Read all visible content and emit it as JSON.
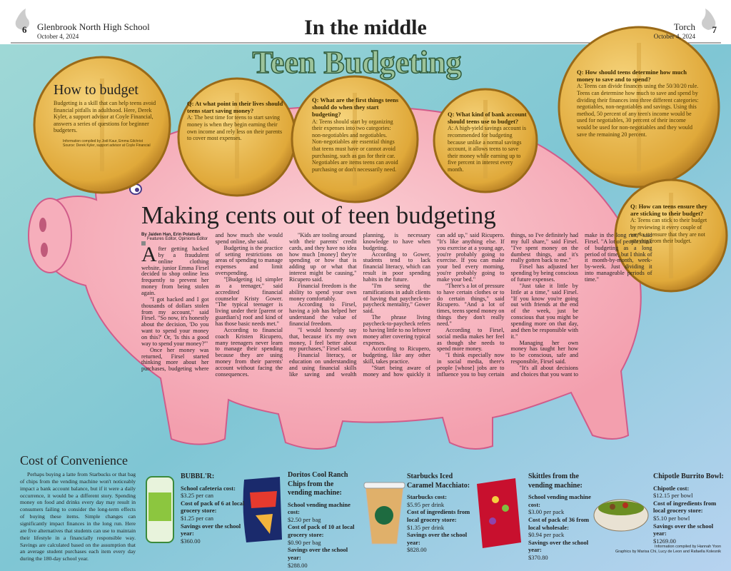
{
  "header": {
    "left_page": "6",
    "left_school": "Glenbrook North High School",
    "left_date": "October 4, 2024",
    "section": "In the middle",
    "right_paper": "Torch",
    "right_date": "October 4, 2024",
    "right_page": "7"
  },
  "graphic_title": "Teen Budgeting",
  "how_to": {
    "title": "How to budget",
    "text": "Budgeting is a skill that can help teens avoid financial pitfalls in adulthood. Here, Derek Kyler, a support advisor at Coyle Financial, answers a series of questions for beginner budgeters.",
    "credit1": "Information compiled by Jodi Kaur, Emma Gilchrist",
    "credit2": "Source: Derek Kyler, support advisor at Coyle Financial"
  },
  "qa": [
    {
      "q": "Q: At what point in their lives should teens start saving money?",
      "a": "A: The best time for teens to start saving money is when they begin earning their own income and rely less on their parents to cover most expenses."
    },
    {
      "q": "Q: What are the first things teens should do when they start budgeting?",
      "a": "A: Teens should start by organizing their expenses into two categories: non-negotiables and negotiables. Non-negotiables are essential things that teens must have or cannot avoid purchasing, such as gas for their car. Negotiables are items teens can avoid purchasing or don't necessarily need."
    },
    {
      "q": "Q: What kind of bank account should teens use to budget?",
      "a": "A: A high-yield savings account is recommended for budgeting because unlike a normal savings account, it allows teens to save their money while earning up to five percent in interest every month."
    },
    {
      "q": "Q: How should teens determine how much money to save and to spend?",
      "a": "A: Teens can divide finances using the 50/30/20 rule. Teens can determine how much to save and spend by dividing their finances into three different categories: negotiables, non-negotiables and savings. Using this method, 50 percent of any teen's income would be used for negotiables, 30 percent of their income would be used for non-negotiables and they would save the remaining 20 percent."
    },
    {
      "q": "Q: How can teens ensure they are sticking to their budget?",
      "a": "A: Teens can stick to their budget by reviewing it every couple of weeks to ensure that they are not straying from their budget."
    }
  ],
  "article": {
    "headline": "Making cents out of teen budgeting",
    "byline": "By Jaiden Han, Erin Polatsek",
    "roles": "Features Editor, Opinions Editor",
    "paragraphs": [
      "After getting hacked by a fraudulent online clothing website, junior Emma Firsel decided to shop online less frequently to prevent her money from being stolen again.",
      "\"I got hacked and I got thousands of dollars stolen from my account,\" said Firsel. \"So now, it's honestly about the decision, 'Do you want to spend your money on this?' Or, 'Is this a good way to spend your money?'\"",
      "Once her money was returned, Firsel started thinking more about her purchases, budgeting where and how much she would spend online, she said.",
      "Budgeting is the practice of setting restrictions on areas of spending to manage expenses and limit overspending.",
      "\"[Budgeting is] simpler as a teenager,\" said accredited financial counselor Kristy Gower. \"The typical teenager is living under their [parent or guardian's] roof and kind of has those basic needs met.\"",
      "According to financial coach Kristen Ricupero, many teenagers never learn to manage their spending because they are using money from their parents' account without facing the consequences.",
      "\"Kids are tooling around with their parents' credit cards, and they have no idea how much [money] they're spending or how that is adding up or what that interest might be causing,\" Ricupero said.",
      "Financial freedom is the ability to spend your own money comfortably.",
      "According to Firsel, having a job has helped her understand the value of financial freedom.",
      "\"I would honestly say that, because it's my own money, I feel better about my purchases,\" Firsel said.",
      "Financial literacy, or education on understanding and using financial skills like saving and wealth planning, is necessary knowledge to have when budgeting.",
      "According to Gower, students tend to lack financial literacy, which can result in poor spending habits in the future.",
      "\"I'm seeing the ramifications in adult clients of having that paycheck-to-paycheck mentality,\" Gower said.",
      "The phrase living paycheck-to-paycheck refers to having little to no leftover money after covering typical expenses.",
      "According to Ricupero, budgeting, like any other skill, takes practice.",
      "\"Start being aware of money and how quickly it can add up,\" said Ricupero. \"It's like anything else. If you exercise at a young age, you're probably going to exercise. If you can make your bed every morning, you're probably going to make your bed.\"",
      "\"There's a lot of pressure to have certain clothes or to do certain things,\" said Ricupero. \"And a lot of times, teens spend money on things they don't really need.\"",
      "According to Firsel, social media makes her feel as though she needs to spend more money.",
      "\"I think especially now in social media, there's people [whose] jobs are to influence you to buy certain things, so I've definitely had my full share,\" said Firsel. \"I've spent money on the dumbest things, and it's really gotten back to me.\"",
      "Firsel has adjusted her spending by being conscious of future expenses.",
      "\"Just take it little by little at a time,\" said Firsel. \"If you know you're going out with friends at the end of the week, just be conscious that you might be spending more on that day, and then be responsible with it.\"",
      "Managing her own money has taught her how to be conscious, safe and responsible, Firsel said.",
      "\"It's all about decisions and choices that you want to make in the long run,\" said Firsel. \"A lot of people think of budgeting as a long period of time, but I think of it month-by-month, week-by-week. Just dividing it into manageable periods of time.\""
    ]
  },
  "convenience": {
    "title": "Cost of Convenience",
    "text": "Perhaps buying a latte from Starbucks or that bag of chips from the vending machine won't noticeably impact a bank account balance, but if it were a daily occurrence, it would be a different story. Spending money on food and drinks every day may result in consumers failing to consider the long-term effects of buying these items. Simple changes can significantly impact finances in the long run. Here are five alternatives that students can use to maintain their lifestyle in a financially responsible way. Savings are calculated based on the assumption that an average student purchases each item every day during the 180-day school year.",
    "products": [
      {
        "name": "BUBBL'R:",
        "details": [
          {
            "label": "School cafeteria cost:",
            "value": "$3.25 per can"
          },
          {
            "label": "Cost of pack of 6 at local grocery store:",
            "value": "$1.25 per can"
          },
          {
            "label": "Savings over the school year:",
            "value": "$360.00"
          }
        ]
      },
      {
        "name": "Doritos Cool Ranch Chips from the vending machine:",
        "details": [
          {
            "label": "School vending machine cost:",
            "value": "$2.50 per bag"
          },
          {
            "label": "Cost of pack of 10 at local grocery store:",
            "value": "$0.90 per bag"
          },
          {
            "label": "Savings over the school year:",
            "value": "$288.00"
          }
        ]
      },
      {
        "name": "Starbucks Iced Caramel Macchiato:",
        "details": [
          {
            "label": "Starbucks cost:",
            "value": "$5.95 per drink"
          },
          {
            "label": "Cost of ingredients from local grocery store:",
            "value": "$1.35 per drink"
          },
          {
            "label": "Savings over the school year:",
            "value": "$828.00"
          }
        ]
      },
      {
        "name": "Skittles from the vending machine:",
        "details": [
          {
            "label": "School vending machine cost:",
            "value": "$3.00 per pack"
          },
          {
            "label": "Cost of pack of 36 from local wholesale:",
            "value": "$0.94 per pack"
          },
          {
            "label": "Savings over the school year:",
            "value": "$370.80"
          }
        ]
      },
      {
        "name": "Chipotle Burrito Bowl:",
        "details": [
          {
            "label": "Chipotle cost:",
            "value": "$12.15 per bowl"
          },
          {
            "label": "Cost of ingredients from local grocery store:",
            "value": "$5.10 per bowl"
          },
          {
            "label": "Savings over the school year:",
            "value": "$1269.00"
          }
        ]
      }
    ],
    "credit1": "Information compiled by Hannah Yoon",
    "credit2": "Graphics by Marisa Chi, Lucy de Leon and Rafaella Kolesnik"
  }
}
